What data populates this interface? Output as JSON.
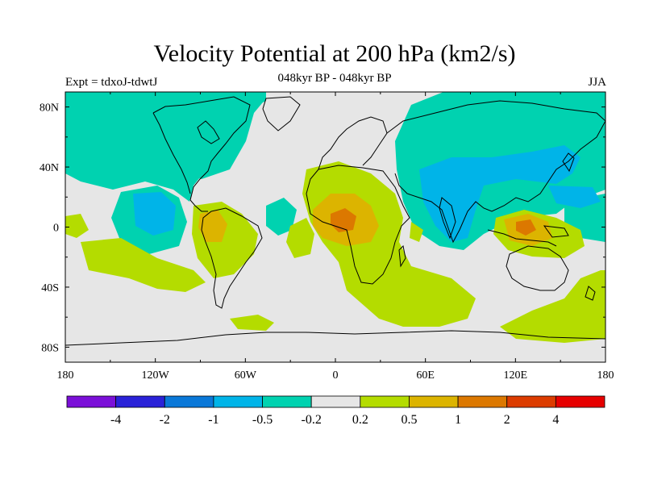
{
  "title": "Velocity Potential at 200 hPa (km2/s)",
  "subtitle": "048kyr BP - 048kyr BP",
  "left_string": "Expt = tdxoJ-tdwtJ",
  "right_string": "JJA",
  "map": {
    "background_color": "#e6e6e6",
    "x_ticks": [
      {
        "lon": -180,
        "label": "180"
      },
      {
        "lon": -120,
        "label": "120W"
      },
      {
        "lon": -60,
        "label": "60W"
      },
      {
        "lon": 0,
        "label": "0"
      },
      {
        "lon": 60,
        "label": "60E"
      },
      {
        "lon": 120,
        "label": "120E"
      },
      {
        "lon": 180,
        "label": "180"
      }
    ],
    "y_ticks": [
      {
        "lat": 80,
        "label": "80N"
      },
      {
        "lat": 40,
        "label": "40N"
      },
      {
        "lat": 0,
        "label": "0"
      },
      {
        "lat": -40,
        "label": "40S"
      },
      {
        "lat": -80,
        "label": "80S"
      }
    ],
    "lon_range": [
      -180,
      180
    ],
    "lat_range": [
      -90,
      90
    ]
  },
  "colorbar": {
    "colors": [
      "#7b10d8",
      "#2a22d8",
      "#0a78d8",
      "#00b4e8",
      "#00d2b0",
      "#e6e6e6",
      "#b4dc00",
      "#dcb400",
      "#dc7800",
      "#dc3c00",
      "#e60000"
    ],
    "labels": [
      "-4",
      "-2",
      "-1",
      "-0.5",
      "-0.2",
      "0.2",
      "0.5",
      "1",
      "2",
      "4"
    ]
  }
}
